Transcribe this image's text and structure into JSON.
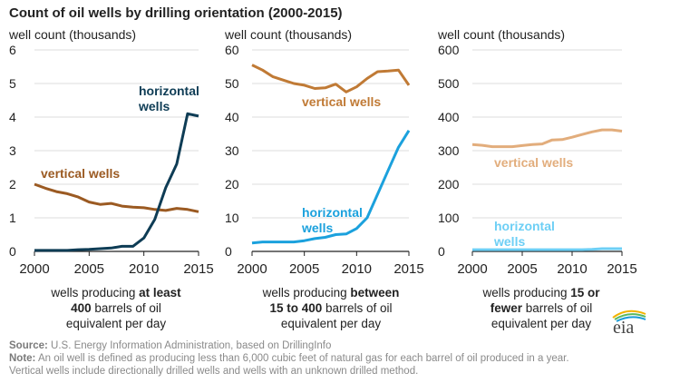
{
  "title": "Count of oil wells by drilling orientation (2000-2015)",
  "footer": {
    "source_label": "Source:",
    "source_text": " U.S. Energy Information Administration, based on DrillingInfo",
    "note_label": "Note:",
    "note_text": " An oil well is defined as producing less than 6,000 cubic feet of natural gas for each barrel of oil produced in a year.",
    "note_text2": "Vertical wells include directionally drilled wells and wells with an unknown drilled method."
  },
  "logo": "eia",
  "chart_data": [
    {
      "type": "line",
      "ylabel": "well count (thousands)",
      "x": [
        2000,
        2001,
        2002,
        2003,
        2004,
        2005,
        2006,
        2007,
        2008,
        2009,
        2010,
        2011,
        2012,
        2013,
        2014,
        2015
      ],
      "xticks": [
        "2000",
        "2005",
        "2010",
        "2015"
      ],
      "yticks": [
        "0",
        "1",
        "2",
        "3",
        "4",
        "5",
        "6"
      ],
      "ylim": [
        0,
        6
      ],
      "grid": true,
      "caption": [
        [
          [
            "wells producing ",
            false
          ],
          [
            "at least",
            true
          ]
        ],
        [
          [
            "400",
            true
          ],
          [
            " barrels of oil",
            false
          ]
        ],
        [
          [
            "equivalent per day",
            false
          ]
        ]
      ],
      "series": [
        {
          "name": "vertical wells",
          "label_lines": [
            "vertical wells"
          ],
          "color": "#9b5a22",
          "values": [
            2.0,
            1.88,
            1.78,
            1.72,
            1.62,
            1.47,
            1.4,
            1.43,
            1.35,
            1.32,
            1.3,
            1.25,
            1.22,
            1.28,
            1.25,
            1.18
          ]
        },
        {
          "name": "horizontal wells",
          "label_lines": [
            "horizontal",
            "wells"
          ],
          "color": "#0e3c55",
          "values": [
            0.03,
            0.03,
            0.03,
            0.03,
            0.05,
            0.06,
            0.08,
            0.1,
            0.15,
            0.15,
            0.4,
            0.95,
            1.9,
            2.6,
            4.1,
            4.03
          ]
        }
      ]
    },
    {
      "type": "line",
      "ylabel": "well count (thousands)",
      "x": [
        2000,
        2001,
        2002,
        2003,
        2004,
        2005,
        2006,
        2007,
        2008,
        2009,
        2010,
        2011,
        2012,
        2013,
        2014,
        2015
      ],
      "xticks": [
        "2000",
        "2005",
        "2010",
        "2015"
      ],
      "yticks": [
        "0",
        "10",
        "20",
        "30",
        "40",
        "50",
        "60"
      ],
      "ylim": [
        0,
        60
      ],
      "grid": true,
      "caption": [
        [
          [
            "wells producing ",
            false
          ],
          [
            "between",
            true
          ]
        ],
        [
          [
            "15 to 400",
            true
          ],
          [
            " barrels of oil",
            false
          ]
        ],
        [
          [
            "equivalent per day",
            false
          ]
        ]
      ],
      "series": [
        {
          "name": "vertical wells",
          "label_lines": [
            "vertical wells"
          ],
          "color": "#c07a35",
          "values": [
            55.5,
            54,
            52,
            51,
            50,
            49.5,
            48.5,
            48.7,
            49.8,
            47.5,
            49,
            51.5,
            53.5,
            53.7,
            54,
            49.5
          ]
        },
        {
          "name": "horizontal wells",
          "label_lines": [
            "horizontal",
            "wells"
          ],
          "color": "#1ba1dd",
          "values": [
            2.5,
            2.8,
            2.8,
            2.8,
            2.8,
            3.2,
            3.8,
            4.2,
            5,
            5.2,
            6.8,
            10,
            17,
            24,
            31,
            36
          ]
        }
      ]
    },
    {
      "type": "line",
      "ylabel": "well count (thousands)",
      "x": [
        2000,
        2001,
        2002,
        2003,
        2004,
        2005,
        2006,
        2007,
        2008,
        2009,
        2010,
        2011,
        2012,
        2013,
        2014,
        2015
      ],
      "xticks": [
        "2000",
        "2005",
        "2010",
        "2015"
      ],
      "yticks": [
        "0",
        "100",
        "200",
        "300",
        "400",
        "500",
        "600"
      ],
      "ylim": [
        0,
        600
      ],
      "grid": true,
      "caption": [
        [
          [
            "wells producing ",
            false
          ],
          [
            "15 or",
            true
          ]
        ],
        [
          [
            "fewer",
            true
          ],
          [
            " barrels of oil",
            false
          ]
        ],
        [
          [
            "equivalent per day",
            false
          ]
        ]
      ],
      "series": [
        {
          "name": "vertical wells",
          "label_lines": [
            "vertical wells"
          ],
          "color": "#e2ad7c",
          "values": [
            318,
            316,
            312,
            312,
            312,
            315,
            318,
            320,
            332,
            333,
            340,
            348,
            356,
            362,
            362,
            358
          ]
        },
        {
          "name": "horizontal wells",
          "label_lines": [
            "horizontal",
            "wells"
          ],
          "color": "#6dcff5",
          "values": [
            5,
            5,
            5,
            5,
            5,
            5,
            5,
            5,
            5,
            5,
            5,
            5,
            6,
            8,
            8,
            8
          ]
        }
      ]
    }
  ]
}
